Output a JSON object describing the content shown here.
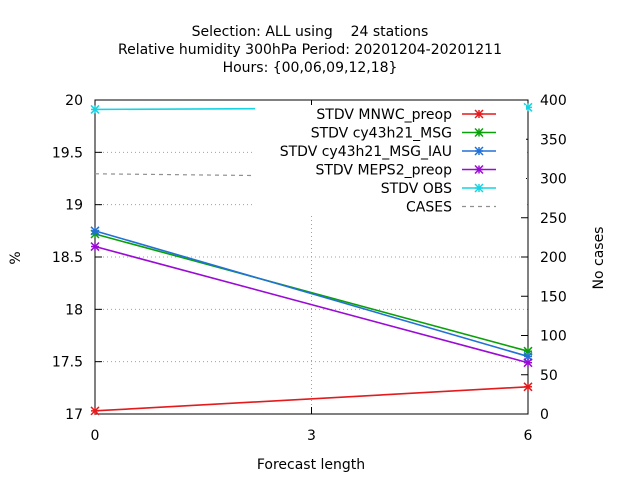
{
  "chart_data": {
    "type": "line",
    "title": [
      "Selection: ALL using    24 stations",
      "Relative humidity 300hPa   Period: 20201204-20201211",
      "Hours: {00,06,09,12,18}"
    ],
    "xlabel": "Forecast length",
    "ylabel": "%",
    "y2label": "No cases",
    "xlim": [
      0,
      6
    ],
    "ylim": [
      17,
      20
    ],
    "y2lim": [
      0,
      400
    ],
    "xticks": [
      0,
      3,
      6
    ],
    "yticks": [
      17,
      17.5,
      18,
      18.5,
      19,
      19.5,
      20
    ],
    "y2ticks": [
      0,
      50,
      100,
      150,
      200,
      250,
      300,
      350,
      400
    ],
    "x": [
      0,
      6
    ],
    "grid": true,
    "legend_position": "top-right",
    "series": [
      {
        "name": "STDV MNWC_preop",
        "axis": "y",
        "color": "#e41a1c",
        "values": [
          17.03,
          17.26
        ]
      },
      {
        "name": "STDV cy43h21_MSG",
        "axis": "y",
        "color": "#0aa00a",
        "values": [
          18.72,
          17.6
        ]
      },
      {
        "name": "STDV cy43h21_MSG_IAU",
        "axis": "y",
        "color": "#2171d6",
        "values": [
          18.75,
          17.55
        ]
      },
      {
        "name": "STDV MEPS2_preop",
        "axis": "y",
        "color": "#9a0bd6",
        "values": [
          18.6,
          17.49
        ]
      },
      {
        "name": "STDV OBS",
        "axis": "y",
        "color": "#17d4e2",
        "values": [
          19.91,
          19.93
        ]
      },
      {
        "name": "CASES",
        "axis": "y2",
        "color": "#909090",
        "dashed": true,
        "values": [
          306,
          300
        ]
      }
    ]
  }
}
